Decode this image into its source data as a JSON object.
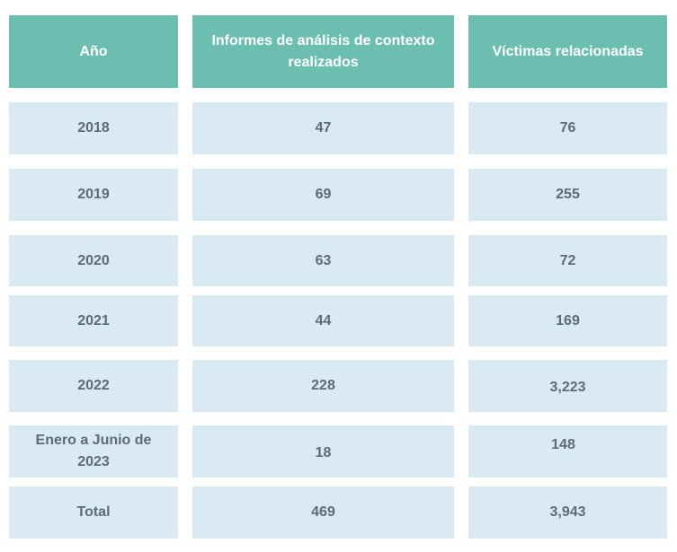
{
  "table": {
    "headers": [
      "Año",
      "Informes de análisis de contexto realizados",
      "Víctimas relacionadas"
    ],
    "rows": [
      [
        "2018",
        "47",
        "76"
      ],
      [
        "2019",
        "69",
        "255"
      ],
      [
        "2020",
        "63",
        "72"
      ],
      [
        "2021",
        "44",
        "169"
      ],
      [
        "2022",
        "228",
        "3,223"
      ],
      [
        "Enero a Junio de 2023",
        "18",
        "148"
      ],
      [
        "Total",
        "469",
        "3,943"
      ]
    ]
  }
}
